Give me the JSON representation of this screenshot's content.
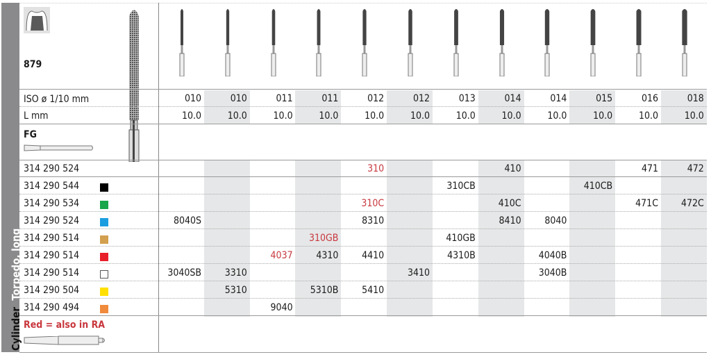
{
  "side_label": {
    "shape": "Cylinder",
    "variant": "Torpedo, long"
  },
  "product": {
    "number": "879",
    "iso_label": "ISO ø 1/10 mm",
    "length_label": "L mm",
    "shank": "FG",
    "legend": "Red = also in RA"
  },
  "iso": [
    "010",
    "010",
    "011",
    "011",
    "012",
    "012",
    "013",
    "014",
    "014",
    "015",
    "016",
    "018"
  ],
  "length": [
    "10.0",
    "10.0",
    "10.0",
    "10.0",
    "10.0",
    "10.0",
    "10.0",
    "10.0",
    "10.0",
    "10.0",
    "10.0",
    "10.0"
  ],
  "colors": {
    "red_text": "#c8373d",
    "shade": "#e6e7e8",
    "side": "#8a8a8c"
  },
  "rows": [
    {
      "code": "314 290 524",
      "swatch": null,
      "cells": [
        "",
        "",
        "",
        "",
        "310",
        "",
        "",
        "410",
        "",
        "",
        "471",
        "472"
      ],
      "red": [
        4
      ]
    },
    {
      "code": "314 290 544",
      "swatch": "#000000",
      "cells": [
        "",
        "",
        "",
        "",
        "",
        "",
        "310CB",
        "",
        "",
        "410CB",
        "",
        ""
      ],
      "red": []
    },
    {
      "code": "314 290 534",
      "swatch": "#1aa64a",
      "cells": [
        "",
        "",
        "",
        "",
        "310C",
        "",
        "",
        "410C",
        "",
        "",
        "471C",
        "472C"
      ],
      "red": [
        4
      ]
    },
    {
      "code": "314 290 524",
      "swatch": "#1b9ee0",
      "cells": [
        "8040S",
        "",
        "",
        "",
        "8310",
        "",
        "",
        "8410",
        "8040",
        "",
        "",
        ""
      ],
      "red": []
    },
    {
      "code": "314 290 514",
      "swatch": "#d2a04e",
      "cells": [
        "",
        "",
        "",
        "310GB",
        "",
        "",
        "410GB",
        "",
        "",
        "",
        "",
        ""
      ],
      "red": [
        3
      ]
    },
    {
      "code": "314 290 514",
      "swatch": "#e8202a",
      "cells": [
        "",
        "",
        "4037",
        "4310",
        "4410",
        "",
        "4310B",
        "",
        "4040B",
        "",
        "",
        ""
      ],
      "red": [
        2
      ]
    },
    {
      "code": "314 290 514",
      "swatch": "#ffffff",
      "cells": [
        "3040SB",
        "3310",
        "",
        "",
        "",
        "3410",
        "",
        "",
        "3040B",
        "",
        "",
        ""
      ],
      "red": []
    },
    {
      "code": "314 290 504",
      "swatch": "#ffe000",
      "cells": [
        "",
        "5310",
        "",
        "5310B",
        "5410",
        "",
        "",
        "",
        "",
        "",
        "",
        ""
      ],
      "red": []
    },
    {
      "code": "314 290 494",
      "swatch": "#f08a3c",
      "cells": [
        "",
        "",
        "9040",
        "",
        "",
        "",
        "",
        "",
        "",
        "",
        "",
        ""
      ],
      "red": []
    }
  ]
}
